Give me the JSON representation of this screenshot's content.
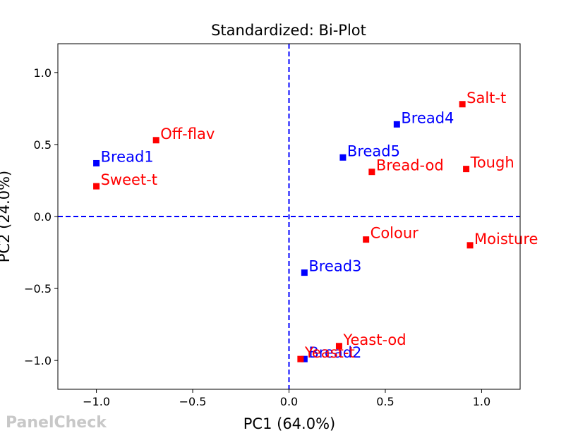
{
  "chart_data": {
    "type": "scatter",
    "title": "Standardized: Bi-Plot",
    "xlabel": "PC1 (64.0%)",
    "ylabel": "PC2 (24.0%)",
    "xlim": [
      -1.2,
      1.2
    ],
    "ylim": [
      -1.2,
      1.2
    ],
    "xticks": [
      -1.0,
      -0.5,
      0.0,
      0.5,
      1.0
    ],
    "yticks": [
      -1.0,
      -0.5,
      0.0,
      0.5,
      1.0
    ],
    "xtick_labels": [
      "−1.0",
      "−0.5",
      "0.0",
      "0.5",
      "1.0"
    ],
    "ytick_labels": [
      "−1.0",
      "−0.5",
      "0.0",
      "0.5",
      "1.0"
    ],
    "reference_lines": {
      "x": 0.0,
      "y": 0.0,
      "style": "dashed",
      "color": "#0000ff"
    },
    "series": [
      {
        "color": "#0000ff",
        "points": [
          {
            "label": "Bread1",
            "x": -1.0,
            "y": 0.37
          },
          {
            "label": "Bread2",
            "x": 0.08,
            "y": -0.99
          },
          {
            "label": "Bread3",
            "x": 0.08,
            "y": -0.39
          },
          {
            "label": "Bread4",
            "x": 0.56,
            "y": 0.64
          },
          {
            "label": "Bread5",
            "x": 0.28,
            "y": 0.41
          }
        ]
      },
      {
        "color": "#ff0000",
        "points": [
          {
            "label": "Off-flav",
            "x": -0.69,
            "y": 0.53
          },
          {
            "label": "Sweet-t",
            "x": -1.0,
            "y": 0.21
          },
          {
            "label": "Salt-t",
            "x": 0.9,
            "y": 0.78
          },
          {
            "label": "Bread-od",
            "x": 0.43,
            "y": 0.31
          },
          {
            "label": "Tough",
            "x": 0.92,
            "y": 0.33
          },
          {
            "label": "Colour",
            "x": 0.4,
            "y": -0.16
          },
          {
            "label": "Moisture",
            "x": 0.94,
            "y": -0.2
          },
          {
            "label": "Yeast-od",
            "x": 0.26,
            "y": -0.9
          },
          {
            "label": "Yeast-t",
            "x": 0.06,
            "y": -0.99
          }
        ]
      }
    ],
    "grid": false
  },
  "watermark": "PanelCheck"
}
